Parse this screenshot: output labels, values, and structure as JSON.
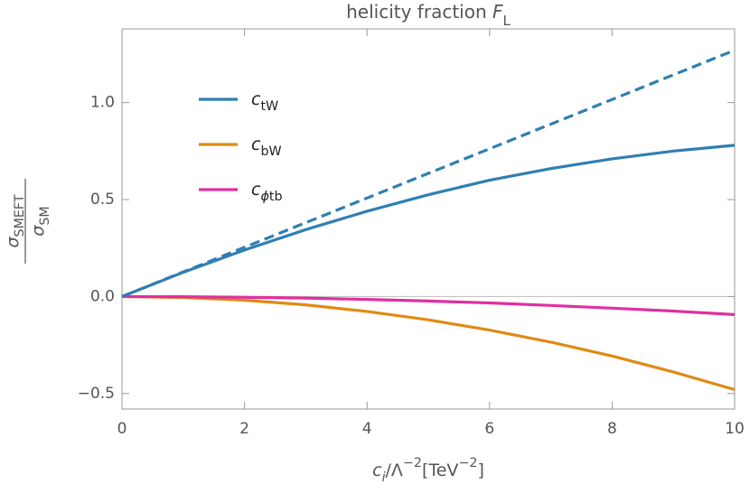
{
  "chart_data": {
    "type": "line",
    "title": "helicity fraction FL",
    "x_label": "ci/Λ−2[TeV−2]",
    "y_label_numerator": "σSMEFT",
    "y_label_denominator": "σSM",
    "x": [
      0,
      1,
      2,
      3,
      4,
      5,
      6,
      7,
      8,
      9,
      10
    ],
    "series": [
      {
        "name": "ctW",
        "color": "#2f7fb3",
        "values": [
          0,
          0.125,
          0.24,
          0.345,
          0.44,
          0.525,
          0.6,
          0.66,
          0.71,
          0.75,
          0.78
        ]
      },
      {
        "name": "cbW",
        "color": "#e08a14",
        "values": [
          0,
          -0.005,
          -0.019,
          -0.043,
          -0.077,
          -0.12,
          -0.173,
          -0.235,
          -0.307,
          -0.389,
          -0.48
        ]
      },
      {
        "name": "cϕtb",
        "color": "#e0309f",
        "values": [
          0,
          -0.001,
          -0.004,
          -0.008,
          -0.015,
          -0.023,
          -0.033,
          -0.046,
          -0.06,
          -0.075,
          -0.093
        ]
      },
      {
        "color": "#2f7fb3",
        "dashed": true,
        "values": [
          0,
          0.127,
          0.254,
          0.381,
          0.508,
          0.635,
          0.762,
          0.889,
          1.016,
          1.143,
          1.27
        ]
      }
    ],
    "xlim": [
      0,
      10
    ],
    "xticks": [
      0,
      2,
      4,
      6,
      8,
      10
    ],
    "ylim": [
      -0.58,
      1.38
    ],
    "yticks": [
      {
        "value": -0.5,
        "label": "−0.5"
      },
      {
        "value": 0,
        "label": "0.0"
      },
      0.5,
      {
        "value": 1,
        "label": "1.0"
      }
    ]
  }
}
